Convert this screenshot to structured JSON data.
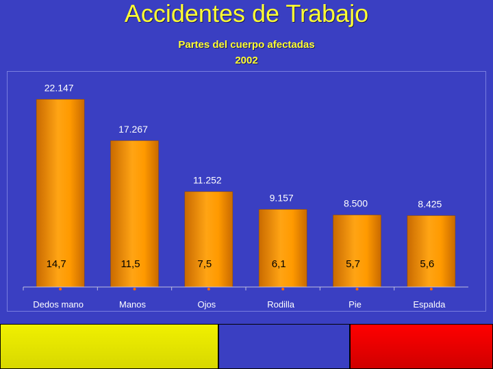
{
  "header": {
    "title": "Accidentes de Trabajo",
    "subtitle_line1": "Partes del cuerpo afectadas",
    "subtitle_line2": "2002"
  },
  "chart_data": {
    "type": "bar",
    "title": "Partes del cuerpo afectadas",
    "subtitle": "2002",
    "categories": [
      "Dedos mano",
      "Manos",
      "Ojos",
      "Rodilla",
      "Pie",
      "Espalda"
    ],
    "values": [
      22147,
      17267,
      11252,
      9157,
      8500,
      8425
    ],
    "value_labels": [
      "22.147",
      "17.267",
      "11.252",
      "9.157",
      "8.500",
      "8.425"
    ],
    "percent_labels": [
      "14,7",
      "11,5",
      "7,5",
      "6,1",
      "5,7",
      "5,6"
    ],
    "xlabel": "",
    "ylabel": "",
    "ylim": [
      0,
      25000
    ],
    "grid": false,
    "legend": "none",
    "colors": {
      "bar": "#f08a00",
      "bar_highlight": "#ffb020",
      "text": "#ffffff",
      "percent_text": "#000000",
      "axis": "#c0c0e0",
      "tick": "#ff6600"
    }
  },
  "footer_bands": {
    "colors": [
      "#f0f000",
      "#3a3fc2",
      "#ff0000"
    ]
  }
}
